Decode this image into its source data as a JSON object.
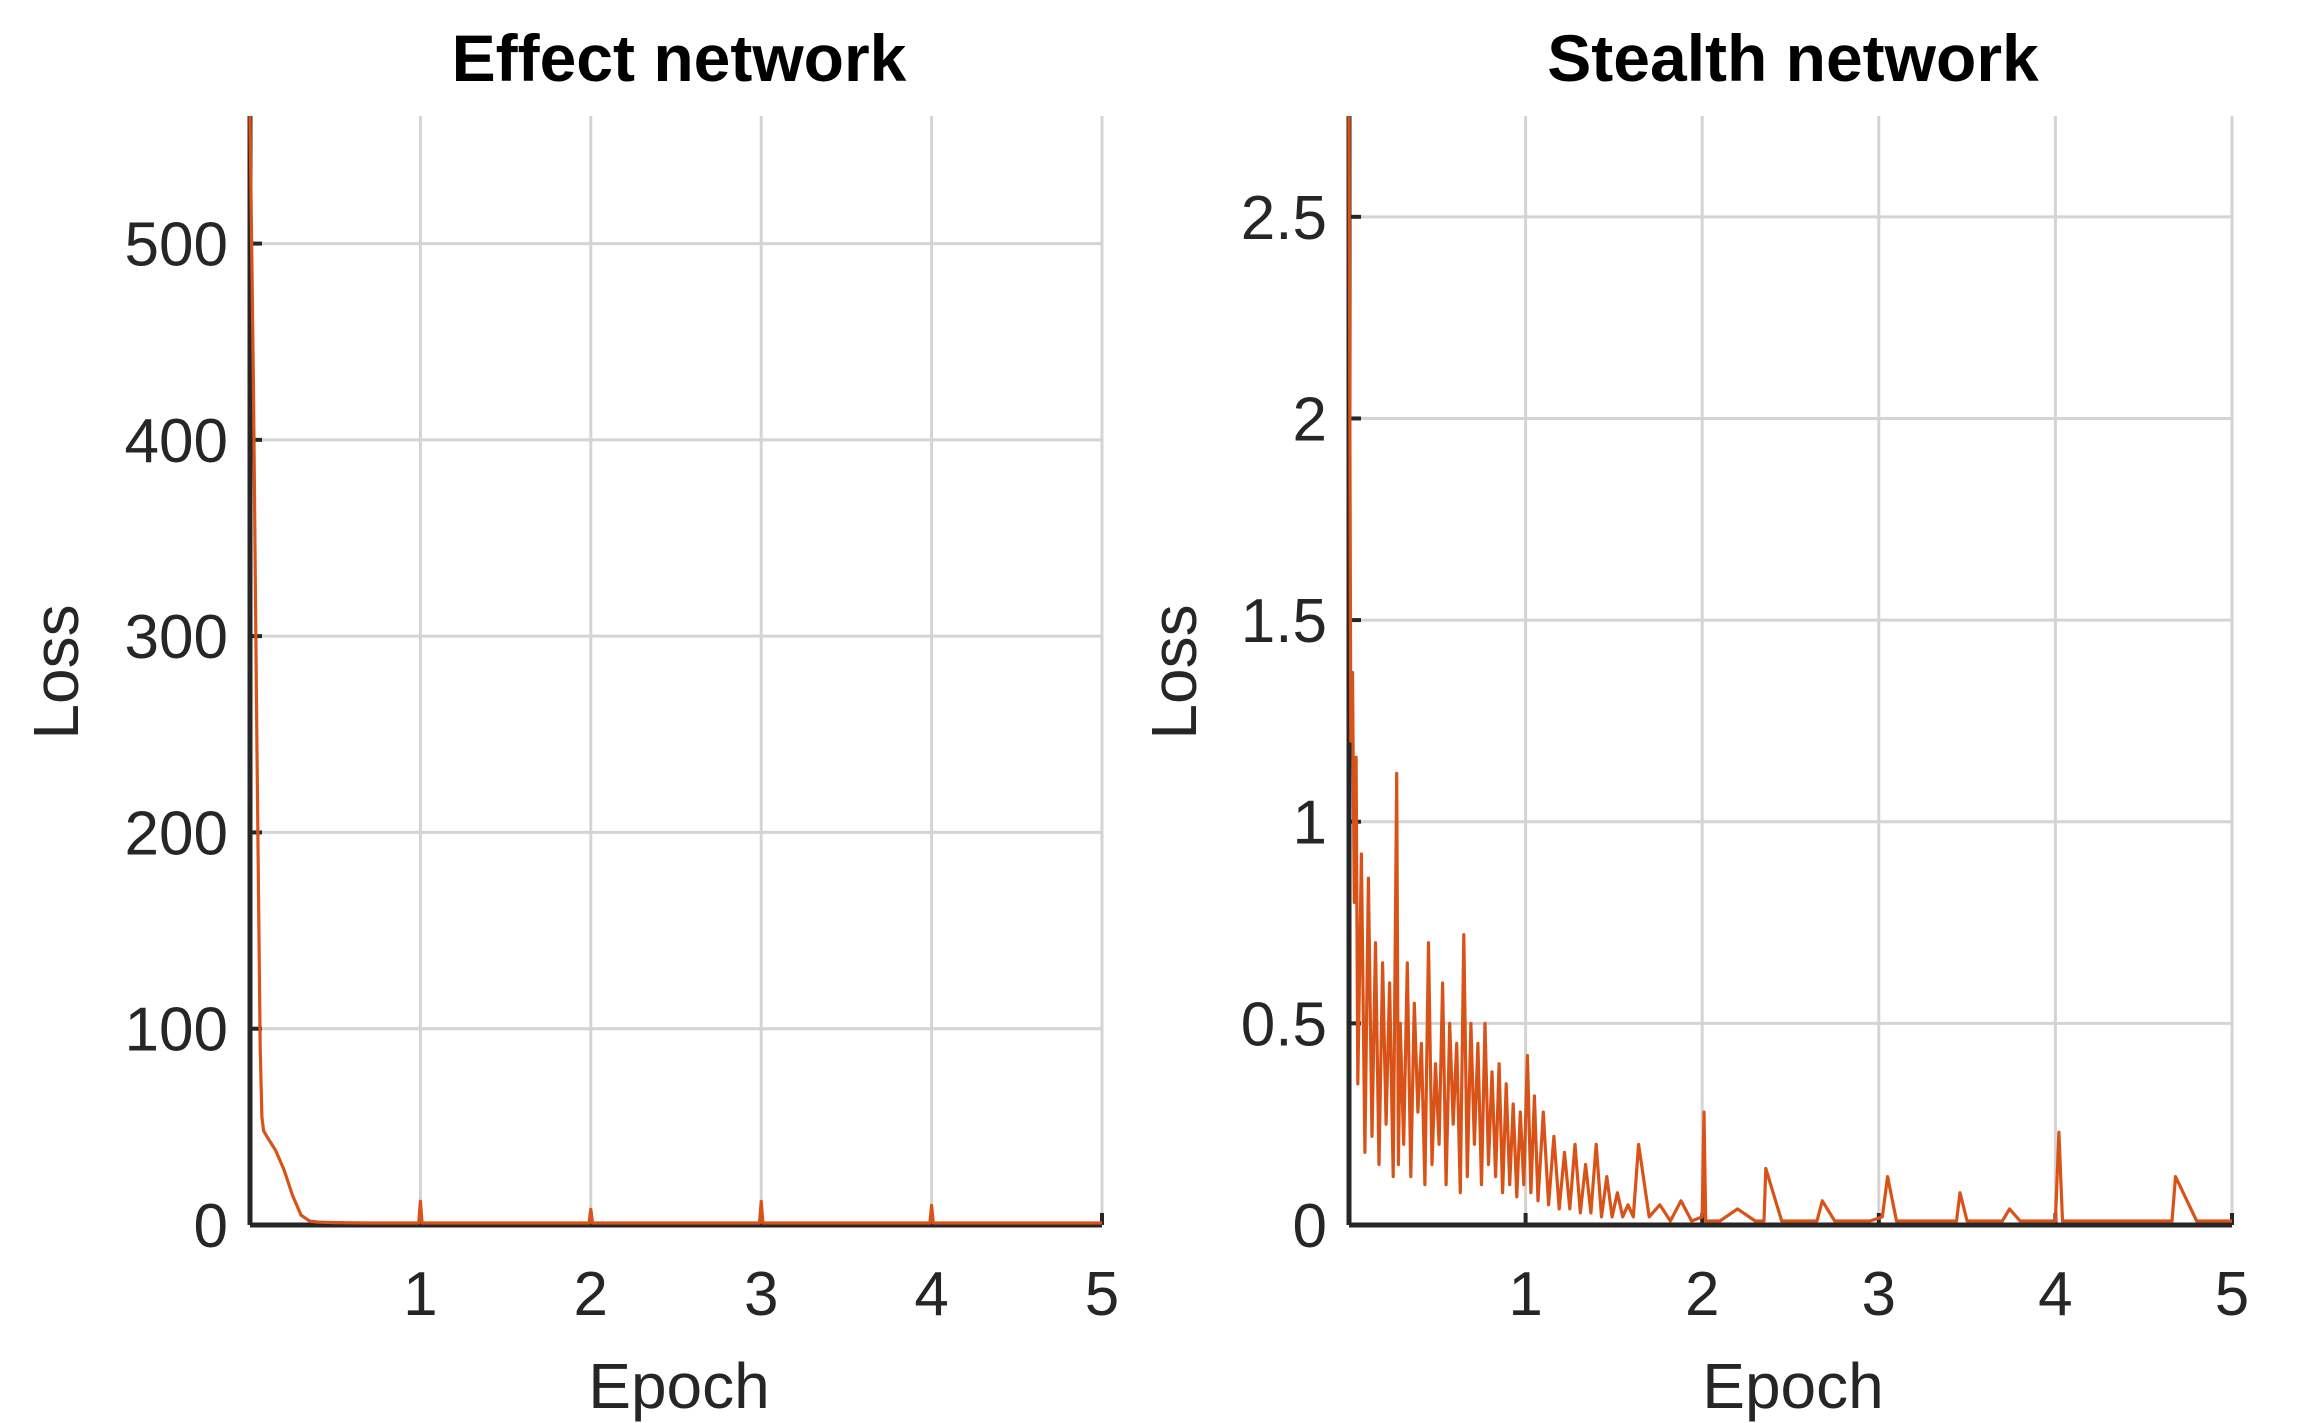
{
  "colors": {
    "series": "#D95319",
    "axis": "#262626",
    "grid": "#D4D4D4"
  },
  "chart_data": [
    {
      "type": "line",
      "title": "Effect network",
      "xlabel": "Epoch",
      "ylabel": "Loss",
      "xlim": [
        0,
        5
      ],
      "ylim": [
        0,
        565
      ],
      "xticks": [
        1,
        2,
        3,
        4,
        5
      ],
      "xtick_labels": [
        "1",
        "2",
        "3",
        "4",
        "5"
      ],
      "yticks": [
        0,
        100,
        200,
        300,
        400,
        500
      ],
      "ytick_labels": [
        "0",
        "100",
        "200",
        "300",
        "400",
        "500"
      ],
      "grid": true,
      "series": [
        {
          "x": [
            0,
            0.02,
            0.04,
            0.06,
            0.07,
            0.08,
            0.1,
            0.15,
            0.2,
            0.25,
            0.3,
            0.35,
            0.4,
            0.5,
            0.7,
            0.99,
            1.0,
            1.01,
            1.3,
            1.6,
            1.99,
            2.0,
            2.01,
            2.5,
            2.99,
            3.0,
            3.01,
            3.5,
            3.99,
            4.0,
            4.01,
            4.5,
            5.0
          ],
          "y": [
            565,
            430,
            250,
            90,
            55,
            48,
            45,
            38,
            28,
            15,
            5,
            2,
            1.5,
            1.2,
            1.0,
            1.0,
            12,
            1.0,
            1.0,
            1.0,
            1.0,
            8,
            1.0,
            1.0,
            1.0,
            12,
            1.0,
            1.0,
            1.0,
            10,
            1.0,
            1.0,
            1.0
          ]
        }
      ]
    },
    {
      "type": "line",
      "title": "Stealth network",
      "xlabel": "Epoch",
      "ylabel": "Loss",
      "xlim": [
        0,
        5
      ],
      "ylim": [
        0,
        2.75
      ],
      "xticks": [
        1,
        2,
        3,
        4,
        5
      ],
      "xtick_labels": [
        "1",
        "2",
        "3",
        "4",
        "5"
      ],
      "yticks": [
        0,
        0.5,
        1,
        1.5,
        2,
        2.5
      ],
      "ytick_labels": [
        "0",
        "0.5",
        "1",
        "1.5",
        "2",
        "2.5"
      ],
      "grid": true,
      "series": [
        {
          "x": [
            0,
            0.01,
            0.02,
            0.03,
            0.04,
            0.05,
            0.07,
            0.09,
            0.11,
            0.13,
            0.15,
            0.17,
            0.19,
            0.21,
            0.23,
            0.25,
            0.27,
            0.28,
            0.29,
            0.31,
            0.33,
            0.35,
            0.37,
            0.39,
            0.41,
            0.43,
            0.45,
            0.47,
            0.49,
            0.51,
            0.53,
            0.55,
            0.57,
            0.59,
            0.61,
            0.63,
            0.65,
            0.67,
            0.69,
            0.71,
            0.73,
            0.75,
            0.77,
            0.79,
            0.81,
            0.83,
            0.85,
            0.87,
            0.89,
            0.91,
            0.93,
            0.95,
            0.97,
            0.99,
            1.01,
            1.03,
            1.05,
            1.07,
            1.1,
            1.13,
            1.16,
            1.19,
            1.22,
            1.25,
            1.28,
            1.31,
            1.34,
            1.37,
            1.4,
            1.43,
            1.46,
            1.49,
            1.52,
            1.55,
            1.58,
            1.61,
            1.64,
            1.7,
            1.76,
            1.82,
            1.88,
            1.94,
            2.0,
            2.01,
            2.02,
            2.1,
            2.2,
            2.3,
            2.35,
            2.36,
            2.45,
            2.55,
            2.65,
            2.68,
            2.75,
            2.85,
            2.95,
            3.02,
            3.05,
            3.1,
            3.2,
            3.3,
            3.44,
            3.46,
            3.5,
            3.6,
            3.7,
            3.74,
            3.8,
            3.9,
            4.0,
            4.02,
            4.04,
            4.1,
            4.2,
            4.3,
            4.4,
            4.5,
            4.6,
            4.66,
            4.68,
            4.8,
            4.9,
            5.0
          ],
          "y": [
            2.75,
            1.2,
            1.37,
            0.8,
            1.16,
            0.35,
            0.92,
            0.18,
            0.86,
            0.22,
            0.7,
            0.15,
            0.65,
            0.25,
            0.6,
            0.12,
            1.12,
            0.15,
            0.5,
            0.2,
            0.65,
            0.12,
            0.55,
            0.28,
            0.45,
            0.1,
            0.7,
            0.15,
            0.4,
            0.2,
            0.6,
            0.1,
            0.5,
            0.25,
            0.45,
            0.08,
            0.72,
            0.12,
            0.5,
            0.2,
            0.45,
            0.1,
            0.5,
            0.15,
            0.38,
            0.12,
            0.4,
            0.08,
            0.35,
            0.1,
            0.3,
            0.07,
            0.28,
            0.1,
            0.42,
            0.08,
            0.32,
            0.06,
            0.28,
            0.05,
            0.22,
            0.04,
            0.18,
            0.04,
            0.2,
            0.03,
            0.15,
            0.03,
            0.2,
            0.02,
            0.12,
            0.02,
            0.08,
            0.02,
            0.05,
            0.02,
            0.2,
            0.02,
            0.05,
            0.01,
            0.06,
            0.01,
            0.02,
            0.28,
            0.01,
            0.01,
            0.04,
            0.01,
            0.01,
            0.14,
            0.01,
            0.01,
            0.01,
            0.06,
            0.01,
            0.01,
            0.01,
            0.02,
            0.12,
            0.01,
            0.01,
            0.01,
            0.01,
            0.08,
            0.01,
            0.01,
            0.01,
            0.04,
            0.01,
            0.01,
            0.01,
            0.23,
            0.01,
            0.01,
            0.01,
            0.01,
            0.01,
            0.01,
            0.01,
            0.01,
            0.12,
            0.01,
            0.01,
            0.01
          ]
        }
      ]
    }
  ]
}
